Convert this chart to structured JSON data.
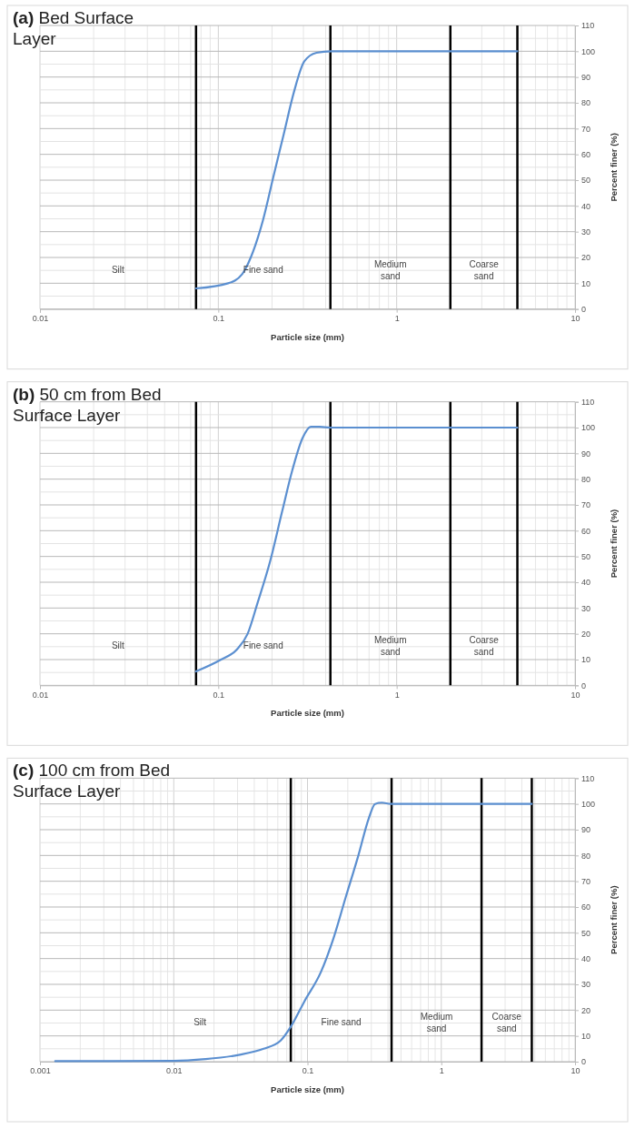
{
  "chart_data": [
    {
      "type": "line",
      "title": "(a) Bed Surface Layer",
      "xlabel": "Particle size (mm)",
      "ylabel": "Percent finer (%)",
      "log": "x",
      "grid": true,
      "marker": "none",
      "line_style": "solid",
      "xlim": [
        0.01,
        10
      ],
      "xticks": [
        0.01,
        0.1,
        1,
        10
      ],
      "ylim": [
        0,
        110
      ],
      "yticks": [
        0,
        10,
        20,
        30,
        40,
        50,
        60,
        70,
        80,
        90,
        100,
        110
      ],
      "series": [
        {
          "color": "#5b8fd0",
          "x": [
            0.075,
            0.1135,
            0.136,
            0.152,
            0.178,
            0.203,
            0.233,
            0.265,
            0.303,
            0.355,
            0.43,
            4.75
          ],
          "values": [
            8,
            10,
            13.5,
            20,
            34.5,
            51,
            68,
            84,
            96,
            99.4,
            100,
            100
          ]
        }
      ],
      "ref_lines": [
        {
          "axis": "x",
          "value": 0.075,
          "color": "#000000"
        },
        {
          "axis": "x",
          "value": 0.425,
          "color": "#000000"
        },
        {
          "axis": "x",
          "value": 2,
          "color": "#000000"
        },
        {
          "axis": "x",
          "value": 4.75,
          "color": "#000000"
        }
      ],
      "annotations": [
        "Silt",
        "Fine sand",
        "Medium sand",
        "Coarse sand"
      ]
    },
    {
      "type": "line",
      "title": "(b) 50 cm from Bed Surface Layer",
      "xlabel": "Particle size (mm)",
      "ylabel": "Percent finer (%)",
      "log": "x",
      "grid": true,
      "marker": "none",
      "line_style": "solid",
      "xlim": [
        0.01,
        10
      ],
      "xticks": [
        0.01,
        0.1,
        1,
        10
      ],
      "ylim": [
        0,
        110
      ],
      "yticks": [
        0,
        10,
        20,
        30,
        40,
        50,
        60,
        70,
        80,
        90,
        100,
        110
      ],
      "series": [
        {
          "color": "#5b8fd0",
          "x": [
            0.075,
            0.103,
            0.127,
            0.146,
            0.166,
            0.195,
            0.228,
            0.26,
            0.297,
            0.33,
            0.37,
            0.425,
            4.75
          ],
          "values": [
            5.4,
            9.9,
            13.9,
            20,
            32,
            48,
            67.5,
            83.5,
            96,
            100.3,
            100.3,
            100,
            100
          ]
        }
      ],
      "ref_lines": [
        {
          "axis": "x",
          "value": 0.075,
          "color": "#000000"
        },
        {
          "axis": "x",
          "value": 0.425,
          "color": "#000000"
        },
        {
          "axis": "x",
          "value": 2,
          "color": "#000000"
        },
        {
          "axis": "x",
          "value": 4.75,
          "color": "#000000"
        }
      ],
      "annotations": [
        "Silt",
        "Fine sand",
        "Medium sand",
        "Coarse sand"
      ]
    },
    {
      "type": "line",
      "title": "(c) 100 cm from Bed Surface Layer",
      "xlabel": "Particle size (mm)",
      "ylabel": "Percent finer (%)",
      "log": "x",
      "grid": true,
      "marker": "none",
      "line_style": "solid",
      "xlim": [
        0.001,
        10
      ],
      "xticks": [
        0.001,
        0.01,
        0.1,
        1,
        10
      ],
      "ylim": [
        0,
        110
      ],
      "yticks": [
        0,
        10,
        20,
        30,
        40,
        50,
        60,
        70,
        80,
        90,
        100,
        110
      ],
      "series": [
        {
          "color": "#5b8fd0",
          "x": [
            0.0013,
            0.01,
            0.0173,
            0.0305,
            0.047,
            0.063,
            0.0755,
            0.095,
            0.126,
            0.156,
            0.193,
            0.24,
            0.287,
            0.32,
            0.36,
            0.42,
            4.75
          ],
          "values": [
            0.2,
            0.3,
            1,
            2.6,
            5,
            8.2,
            13.8,
            23.5,
            34.8,
            47.7,
            63.8,
            80,
            94.4,
            100,
            100.5,
            100,
            100
          ]
        }
      ],
      "ref_lines": [
        {
          "axis": "x",
          "value": 0.075,
          "color": "#000000"
        },
        {
          "axis": "x",
          "value": 0.425,
          "color": "#000000"
        },
        {
          "axis": "x",
          "value": 2,
          "color": "#000000"
        },
        {
          "axis": "x",
          "value": 4.75,
          "color": "#000000"
        }
      ],
      "annotations": [
        "Silt",
        "Fine sand",
        "Medium sand",
        "Coarse sand"
      ]
    }
  ]
}
